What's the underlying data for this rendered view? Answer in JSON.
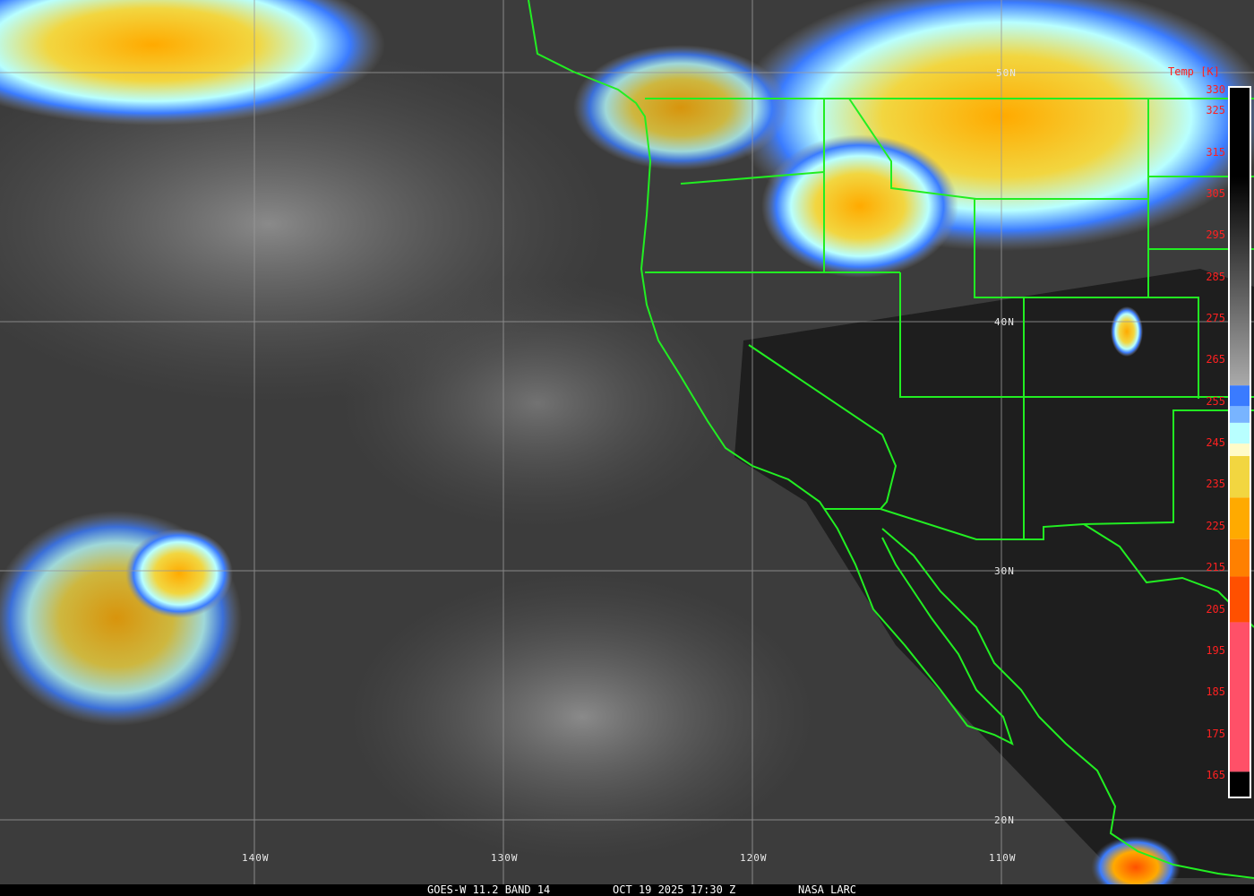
{
  "caption": {
    "satellite": "GOES-W 11.2 BAND 14",
    "datetime": "OCT 19 2025 17:30 Z",
    "source": "NASA LARC"
  },
  "latitude_labels": [
    "50N",
    "40N",
    "30N",
    "20N"
  ],
  "longitude_labels": [
    "140W",
    "130W",
    "120W",
    "110W"
  ],
  "colorbar": {
    "title": "Temp [K]",
    "ticks": [
      "330",
      "325",
      "315",
      "305",
      "295",
      "285",
      "275",
      "265",
      "255",
      "245",
      "235",
      "225",
      "215",
      "205",
      "195",
      "185",
      "175",
      "165"
    ],
    "range": [
      165,
      330
    ],
    "stops": [
      {
        "from": 330,
        "to": 259,
        "color": "gradient-black-to-gray"
      },
      {
        "from": 259,
        "to": 254,
        "color": "#3a7bff"
      },
      {
        "from": 254,
        "to": 250,
        "color": "#78b4ff"
      },
      {
        "from": 250,
        "to": 245,
        "color": "#b8ffff"
      },
      {
        "from": 245,
        "to": 242,
        "color": "#fffbc8"
      },
      {
        "from": 242,
        "to": 232,
        "color": "#f2d640"
      },
      {
        "from": 232,
        "to": 222,
        "color": "#ffaa00"
      },
      {
        "from": 222,
        "to": 213,
        "color": "#ff8000"
      },
      {
        "from": 213,
        "to": 202,
        "color": "#ff5000"
      },
      {
        "from": 202,
        "to": 166,
        "color": "#ff5068"
      },
      {
        "from": 166,
        "to": 165,
        "color": "#000000"
      }
    ]
  },
  "colors": {
    "borders": "#22ee22",
    "grid": "#9a9a9a",
    "labels_colorbar": "#ff2020"
  }
}
